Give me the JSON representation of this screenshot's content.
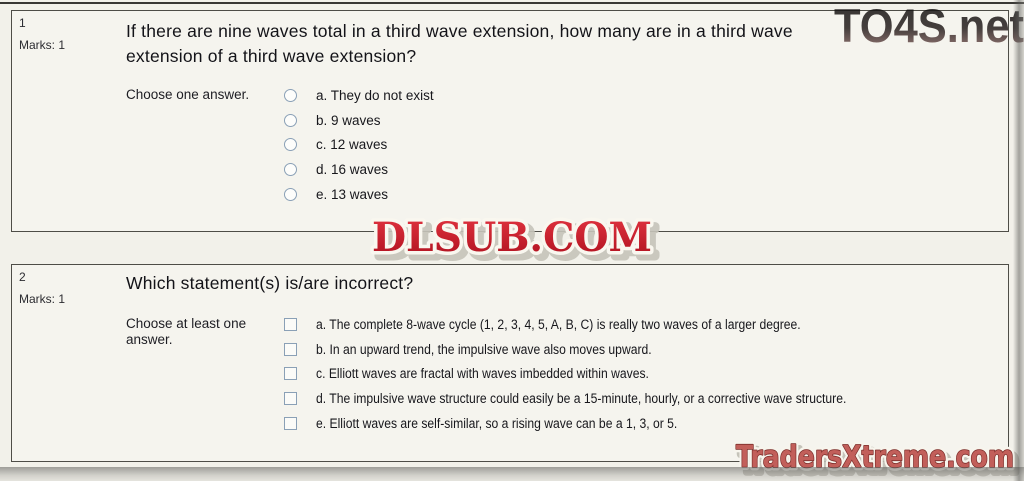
{
  "page": {
    "background": "#f2f1ea",
    "box_background": "#f5f4ee",
    "box_border_color": "#4e4d47",
    "control_border_color": "#8aa0b6"
  },
  "watermarks": {
    "top_right": "TO4S.net",
    "top_right_colors": [
      "#101010",
      "#8d6663"
    ],
    "center": "DLSUB.COM",
    "center_color": "#c41e2a",
    "bottom_right": "TradersXtreme.com",
    "bottom_right_color": "#c25f5a"
  },
  "questions": [
    {
      "number": "1",
      "marks_label": "Marks: 1",
      "title": "If there are nine waves total in a third wave extension, how many are in a third wave\nextension of a third wave extension?",
      "prompt": "Choose one answer.",
      "type": "radio",
      "options": [
        {
          "label": "a. They do not exist"
        },
        {
          "label": "b. 9 waves"
        },
        {
          "label": "c. 12 waves"
        },
        {
          "label": "d. 16 waves"
        },
        {
          "label": "e. 13 waves"
        }
      ]
    },
    {
      "number": "2",
      "marks_label": "Marks: 1",
      "title": "Which statement(s) is/are incorrect?",
      "prompt": "Choose at least one answer.",
      "type": "checkbox",
      "options": [
        {
          "label": "a. The complete 8-wave cycle (1, 2, 3, 4, 5, A, B, C) is really two waves of a larger degree."
        },
        {
          "label": "b. In an upward trend, the impulsive wave also moves upward."
        },
        {
          "label": "c. Elliott waves are fractal with waves imbedded within waves."
        },
        {
          "label": "d. The impulsive wave structure could easily be a 15-minute, hourly, or a corrective wave structure."
        },
        {
          "label": "e. Elliott waves are self-similar, so a rising wave can be a 1, 3, or 5."
        }
      ]
    }
  ]
}
